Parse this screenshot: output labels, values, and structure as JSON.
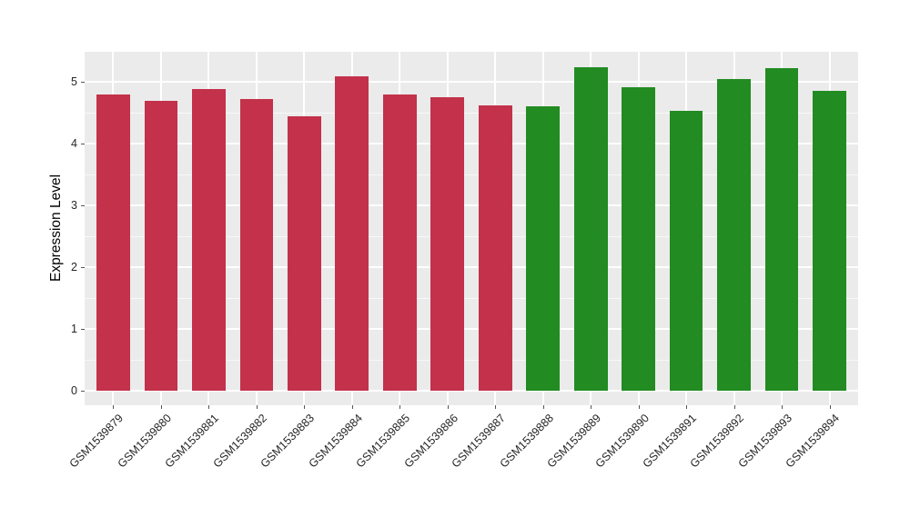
{
  "chart_data": {
    "type": "bar",
    "title": "",
    "xlabel": "",
    "ylabel": "Expression Level",
    "categories": [
      "GSM1539879",
      "GSM1539880",
      "GSM1539881",
      "GSM1539882",
      "GSM1539883",
      "GSM1539884",
      "GSM1539885",
      "GSM1539886",
      "GSM1539887",
      "GSM1539888",
      "GSM1539889",
      "GSM1539890",
      "GSM1539891",
      "GSM1539892",
      "GSM1539893",
      "GSM1539894"
    ],
    "values": [
      4.79,
      4.69,
      4.88,
      4.72,
      4.44,
      5.09,
      4.79,
      4.75,
      4.62,
      4.6,
      5.24,
      4.91,
      4.53,
      5.04,
      5.22,
      4.85
    ],
    "bar_colors": [
      "#C3314A",
      "#C3314A",
      "#C3314A",
      "#C3314A",
      "#C3314A",
      "#C3314A",
      "#C3314A",
      "#C3314A",
      "#C3314A",
      "#228B22",
      "#228B22",
      "#228B22",
      "#228B22",
      "#228B22",
      "#228B22",
      "#228B22"
    ],
    "yticks": [
      0,
      1,
      2,
      3,
      4,
      5
    ],
    "yminorticks": [
      0.5,
      1.5,
      2.5,
      3.5,
      4.5
    ],
    "ylim": [
      0,
      5.5
    ],
    "legend": "none",
    "grid": {
      "horizontal_major": true,
      "horizontal_minor": true,
      "vertical_major_at_categories": true
    },
    "colors": {
      "panel_background": "#EBEBEB",
      "grid": "#FFFFFF",
      "axis_text": "#262626",
      "axis_title": "#000000",
      "tick_marks": "#555555",
      "group1_fill": "#C3314A",
      "group2_fill": "#228B22"
    },
    "bar_width_ratio": 0.7
  }
}
